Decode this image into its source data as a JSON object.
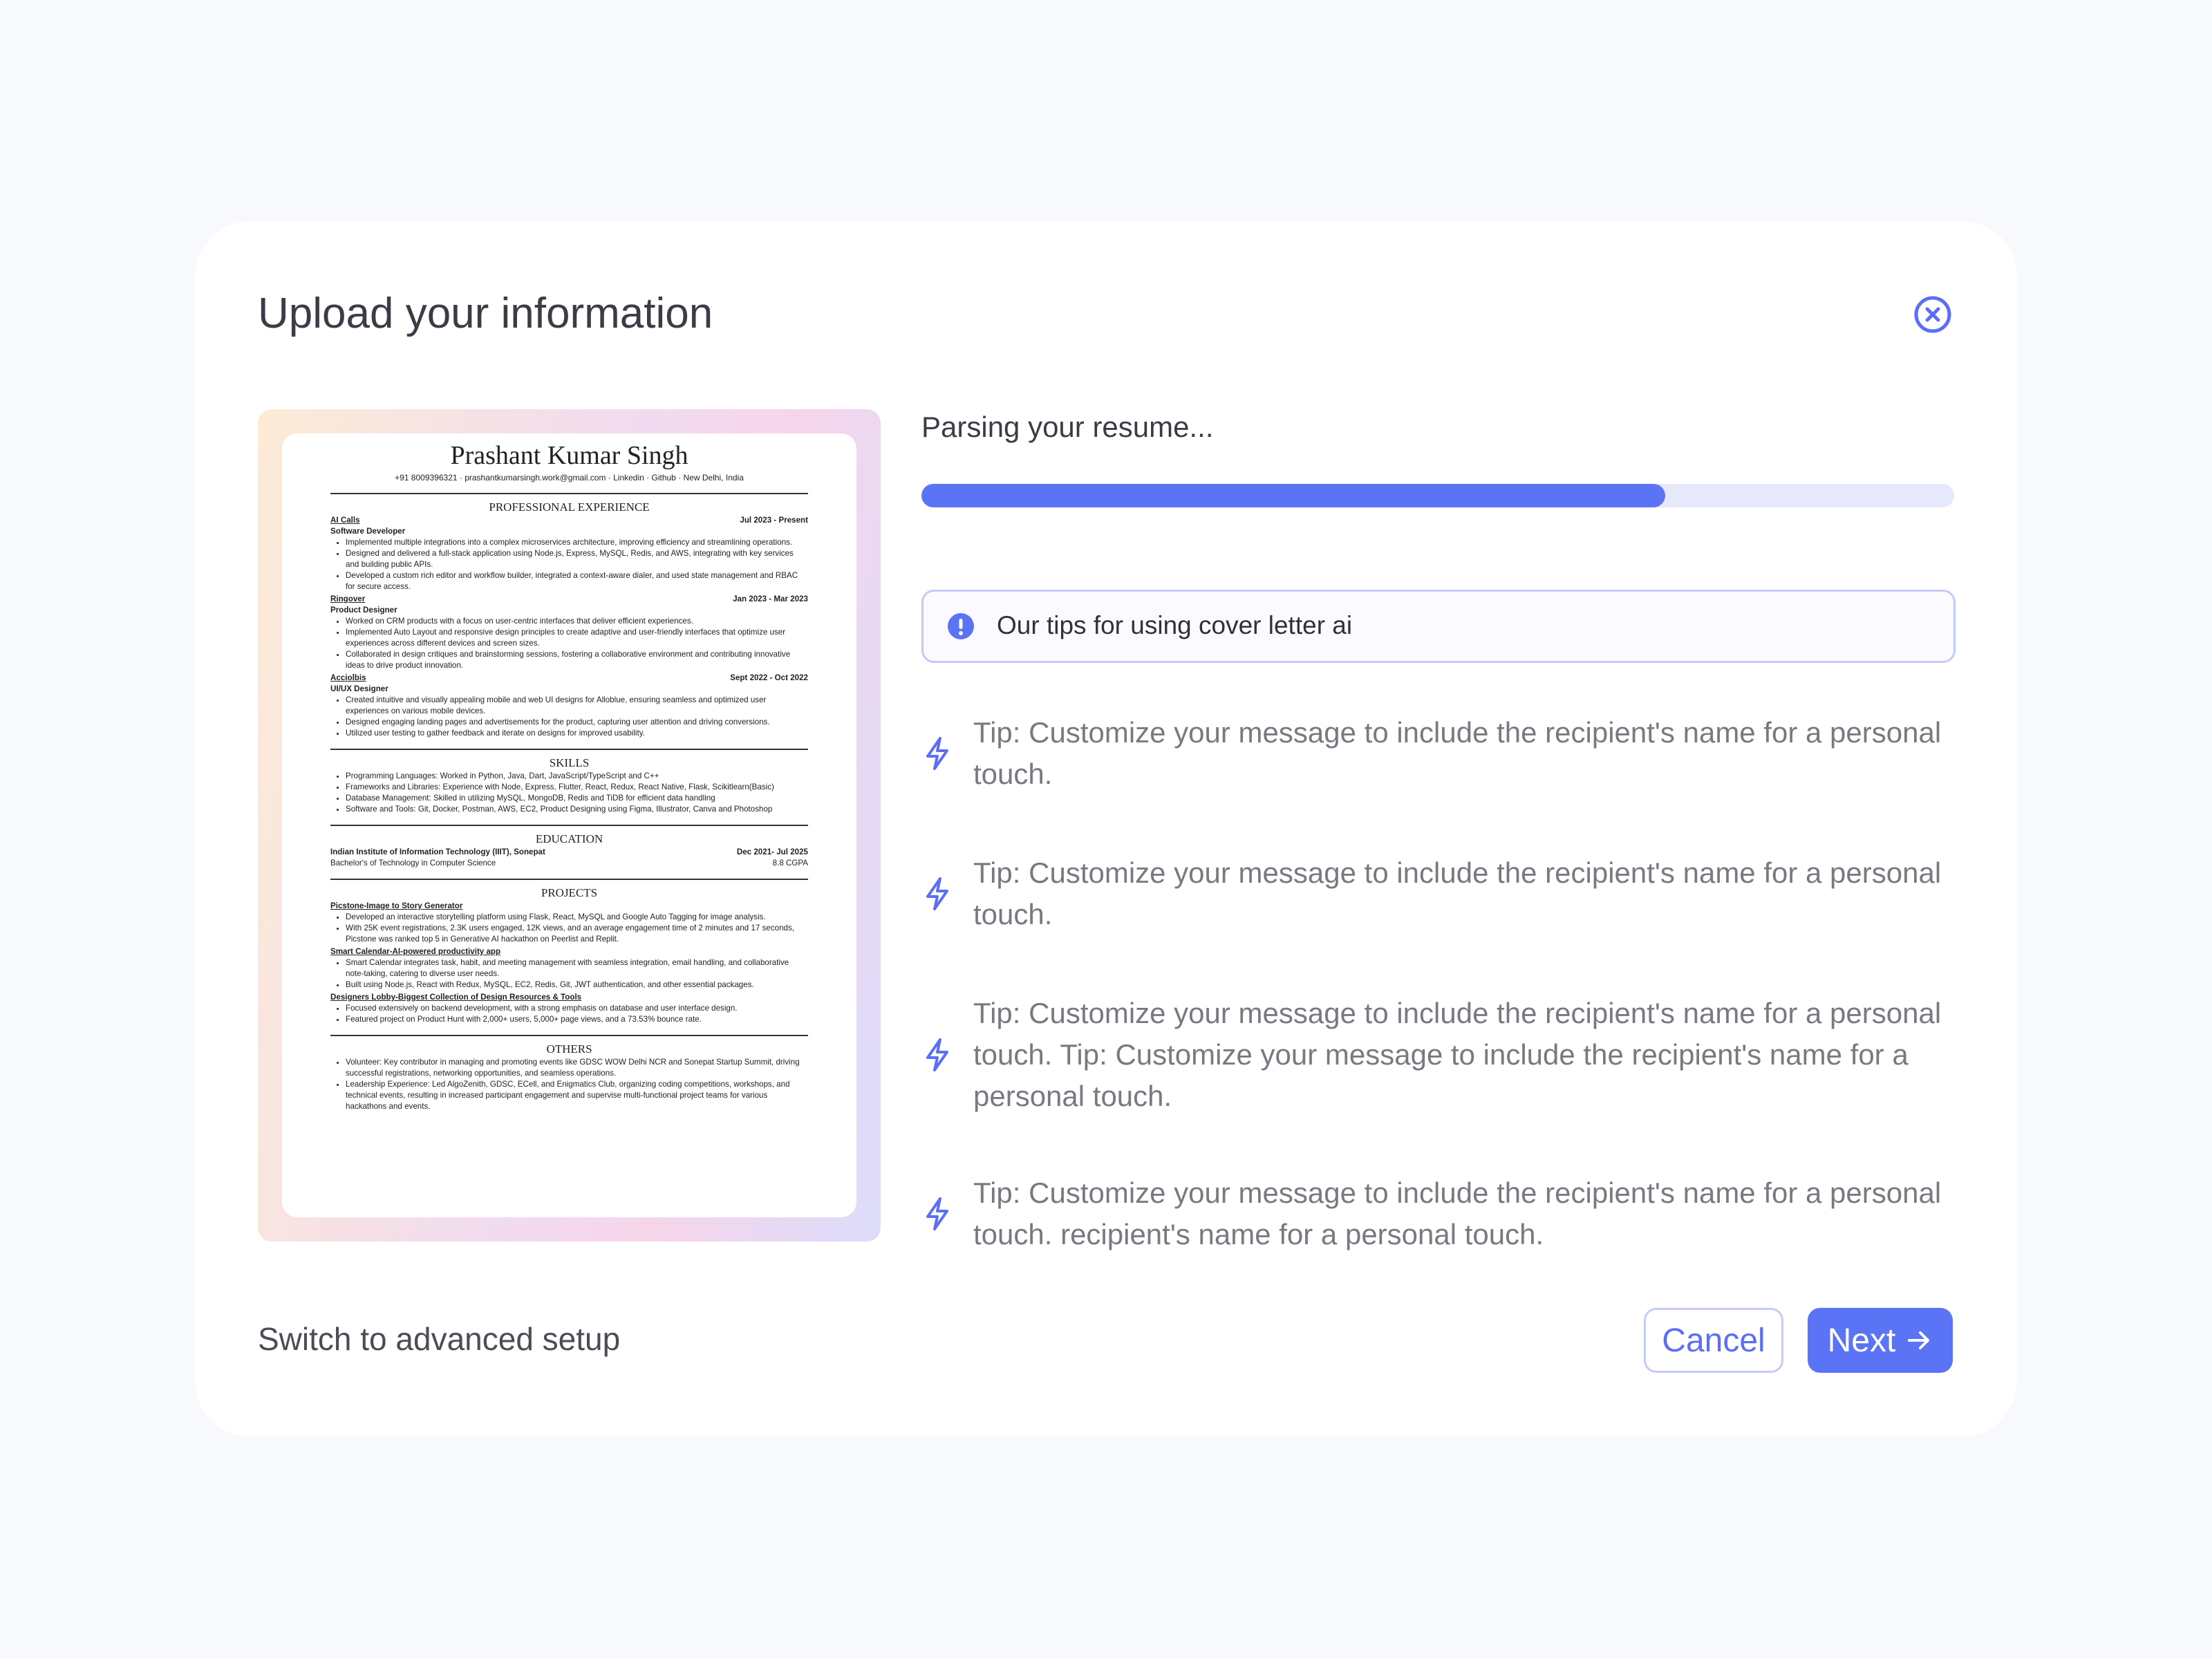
{
  "title": "Upload your information",
  "resume": {
    "name": "Prashant Kumar Singh",
    "contact": "+91 8009396321 · prashantkumarsingh.work@gmail.com · Linkedin · Github · New Delhi, India",
    "sections": [
      {
        "heading": "PROFESSIONAL EXPERIENCE",
        "entries": [
          {
            "name": "AI Calls",
            "date": "Jul 2023 - Present",
            "role": "Software Developer",
            "bullets": [
              "Implemented multiple integrations into a complex microservices architecture, improving efficiency and streamlining operations.",
              "Designed and delivered a full-stack application using Node.js, Express, MySQL, Redis, and AWS, integrating with key services and building public APIs.",
              "Developed a custom rich editor and workflow builder, integrated a context-aware dialer, and used state management and RBAC for secure access."
            ]
          },
          {
            "name": "Ringover",
            "date": "Jan 2023 - Mar 2023",
            "role": "Product Designer",
            "bullets": [
              "Worked on CRM products with a focus on user-centric interfaces that deliver efficient experiences.",
              "Implemented Auto Layout and responsive design principles to create adaptive and user-friendly interfaces that optimize user experiences across different devices and screen sizes.",
              "Collaborated in design critiques and brainstorming sessions, fostering a collaborative environment and contributing innovative ideas to drive product innovation."
            ]
          },
          {
            "name": "Acciolbis",
            "date": "Sept 2022 - Oct 2022",
            "role": "UI/UX Designer",
            "bullets": [
              "Created intuitive and visually appealing mobile and web UI designs for Alloblue, ensuring seamless and optimized user experiences on various mobile devices.",
              "Designed engaging landing pages and advertisements for the product, capturing user attention and driving conversions.",
              "Utilized user testing to gather feedback and iterate on designs for improved usability."
            ]
          }
        ]
      },
      {
        "heading": "SKILLS",
        "bullets": [
          "Programming Languages: Worked in Python, Java, Dart, JavaScript/TypeScript and C++",
          "Frameworks and Libraries: Experience with Node, Express, Flutter, React, Redux, React Native, Flask, Scikitlearn(Basic)",
          "Database Management: Skilled in utilizing MySQL, MongoDB, Redis and TiDB for efficient data handling",
          "Software and Tools: Git, Docker, Postman, AWS, EC2, Product Designing using Figma, Illustrator, Canva and Photoshop"
        ]
      },
      {
        "heading": "EDUCATION",
        "entries": [
          {
            "name": "Indian Institute of Information Technology (IIIT), Sonepat",
            "date": "Dec 2021- Jul 2025",
            "role": "Bachelor's of Technology in Computer Science",
            "detail": "8.8 CGPA"
          }
        ]
      },
      {
        "heading": "PROJECTS",
        "entries": [
          {
            "name": "Picstone-Image to Story Generator",
            "bullets": [
              "Developed an interactive storytelling platform using Flask, React, MySQL and Google Auto Tagging for image analysis.",
              "With 25K event registrations, 2.3K users engaged, 12K views, and an average engagement time of 2 minutes and 17 seconds, Picstone was ranked top 5 in Generative AI hackathon on Peerlist and Replit."
            ]
          },
          {
            "name": "Smart Calendar-AI-powered productivity app",
            "bullets": [
              "Smart Calendar integrates task, habit, and meeting management with seamless integration, email handling, and collaborative note-taking, catering to diverse user needs.",
              "Built using Node.js, React with Redux, MySQL, EC2, Redis, Git, JWT authentication, and other essential packages."
            ]
          },
          {
            "name": "Designers Lobby-Biggest Collection of Design Resources & Tools",
            "bullets": [
              "Focused extensively on backend development, with a strong emphasis on database and user interface design.",
              "Featured project on Product Hunt with 2,000+ users, 5,000+ page views, and a 73.53% bounce rate."
            ]
          }
        ]
      },
      {
        "heading": "OTHERS",
        "bullets": [
          "Volunteer: Key contributor in managing and promoting events like GDSC WOW Delhi NCR and Sonepat Startup Summit, driving successful registrations, networking opportunities, and seamless operations.",
          "Leadership Experience: Led AlgoZenith, GDSC, ECell, and Enigmatics Club, organizing coding competitions, workshops, and technical events, resulting in increased participant engagement and supervise multi-functional project teams for various hackathons and events."
        ]
      }
    ]
  },
  "status": "Parsing your resume...",
  "progress": 72,
  "tips_header": "Our tips for using cover letter ai",
  "tips": [
    "Tip: Customize your message to include the recipient's name for a personal touch.",
    "Tip: Customize your message to include the recipient's name for a personal touch.",
    "Tip: Customize your message to include the recipient's name for a personal touch. Tip: Customize your message to include the recipient's name for a personal touch.",
    "Tip: Customize your message to include the recipient's name for a personal touch. recipient's name for a personal touch."
  ],
  "footer": {
    "advanced": "Switch to advanced setup",
    "cancel": "Cancel",
    "next": "Next"
  }
}
